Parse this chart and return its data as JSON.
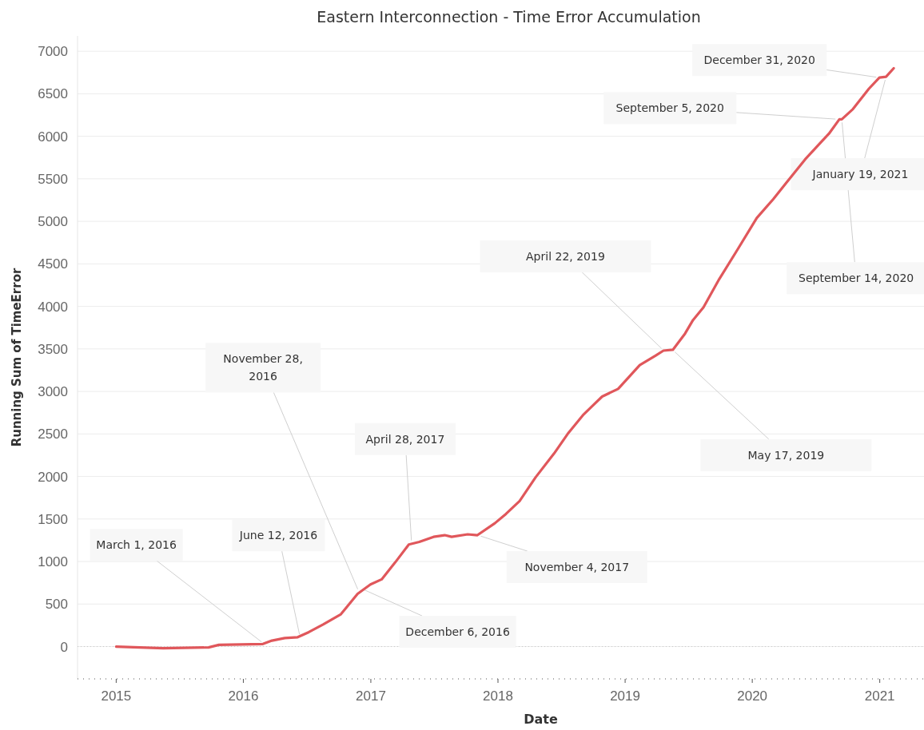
{
  "chart_data": {
    "type": "line",
    "title": "Eastern Interconnection - Time Error Accumulation",
    "xlabel": "Date",
    "ylabel": "Running Sum of TimeError",
    "x": [
      "2015-01-01",
      "2015-05-16",
      "2015-09-23",
      "2015-10-23",
      "2016-02-26",
      "2016-03-23",
      "2016-04-29",
      "2016-06-05",
      "2016-07-07",
      "2016-08-17",
      "2016-10-07",
      "2016-11-24",
      "2016-12-31",
      "2017-02-01",
      "2017-03-12",
      "2017-04-20",
      "2017-05-20",
      "2017-06-30",
      "2017-08-01",
      "2017-08-21",
      "2017-10-06",
      "2017-11-03",
      "2017-12-23",
      "2018-01-24",
      "2018-03-04",
      "2018-04-19",
      "2018-06-11",
      "2018-07-20",
      "2018-09-04",
      "2018-10-27",
      "2018-12-12",
      "2019-02-12",
      "2019-03-29",
      "2019-04-21",
      "2019-05-18",
      "2019-06-22",
      "2019-07-15",
      "2019-08-14",
      "2019-09-28",
      "2019-11-20",
      "2020-01-14",
      "2020-03-01",
      "2020-04-07",
      "2020-06-01",
      "2020-07-07",
      "2020-08-08",
      "2020-09-07",
      "2020-09-14",
      "2020-10-16",
      "2020-12-01",
      "2020-12-31",
      "2021-01-19",
      "2021-02-10"
    ],
    "series": [
      {
        "color": "#e0575b",
        "values": [
          0,
          -20,
          -10,
          20,
          30,
          70,
          100,
          110,
          170,
          260,
          380,
          620,
          730,
          790,
          990,
          1200,
          1230,
          1290,
          1310,
          1290,
          1320,
          1310,
          1450,
          1560,
          1710,
          1990,
          2270,
          2500,
          2730,
          2940,
          3030,
          3310,
          3420,
          3480,
          3490,
          3680,
          3840,
          3990,
          4320,
          4670,
          5040,
          5260,
          5450,
          5730,
          5890,
          6030,
          6200,
          6200,
          6320,
          6560,
          6690,
          6700,
          6800
        ]
      }
    ],
    "xlim": [
      "2014-09-12",
      "2021-05-08"
    ],
    "xticks": [
      {
        "value": "2015-01-01",
        "label": "2015"
      },
      {
        "value": "2016-01-01",
        "label": "2016"
      },
      {
        "value": "2017-01-01",
        "label": "2017"
      },
      {
        "value": "2018-01-01",
        "label": "2018"
      },
      {
        "value": "2019-01-01",
        "label": "2019"
      },
      {
        "value": "2020-01-01",
        "label": "2020"
      },
      {
        "value": "2021-01-01",
        "label": "2021"
      }
    ],
    "ylim": [
      -380,
      7180
    ],
    "yticks": [
      0,
      500,
      1000,
      1500,
      2000,
      2500,
      3000,
      3500,
      4000,
      4500,
      5000,
      5500,
      6000,
      6500,
      7000
    ],
    "grid": "y",
    "marker": "none",
    "line_style": "solid",
    "ref_lines": [
      {
        "axis": "y",
        "value": 0,
        "line_style": "dotted",
        "color": "#c8c8c8"
      }
    ],
    "annotations": [
      {
        "text": "March 1, 2016",
        "x": "2016-03-01",
        "y": 30
      },
      {
        "text": "June 12, 2016",
        "x": "2016-06-12",
        "y": 107
      },
      {
        "text": "November 28, 2016",
        "x": "2016-11-28",
        "y": 640
      },
      {
        "text": "December 6, 2016",
        "x": "2016-12-06",
        "y": 680
      },
      {
        "text": "April 28, 2017",
        "x": "2017-04-28",
        "y": 1210
      },
      {
        "text": "November 4, 2017",
        "x": "2017-11-04",
        "y": 1310
      },
      {
        "text": "April 22, 2019",
        "x": "2019-04-22",
        "y": 3480
      },
      {
        "text": "May 17, 2019",
        "x": "2019-05-17",
        "y": 3490
      },
      {
        "text": "September 5, 2020",
        "x": "2020-09-05",
        "y": 6200
      },
      {
        "text": "September 14, 2020",
        "x": "2020-09-14",
        "y": 6200
      },
      {
        "text": "December 31, 2020",
        "x": "2020-12-31",
        "y": 6690
      },
      {
        "text": "January 19, 2021",
        "x": "2021-01-19",
        "y": 6700
      }
    ]
  }
}
